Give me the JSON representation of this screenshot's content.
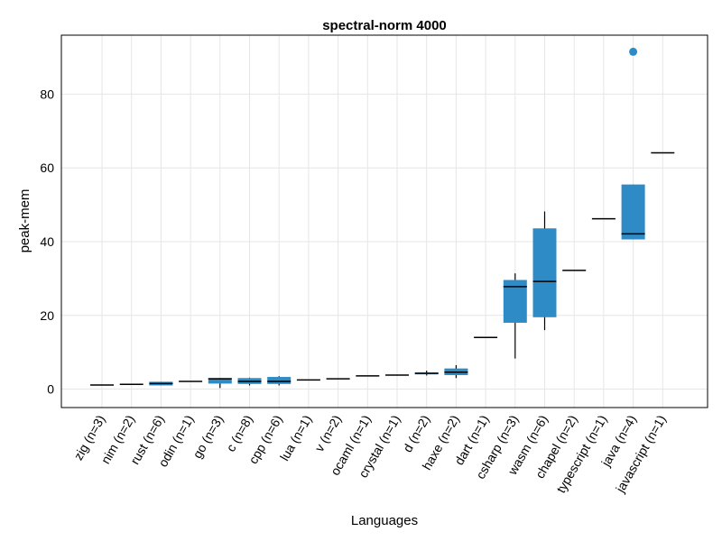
{
  "chart_data": {
    "type": "box",
    "title": "spectral-norm 4000",
    "xlabel": "Languages",
    "ylabel": "peak-mem",
    "ylim": [
      -5,
      96
    ],
    "yticks": [
      0,
      20,
      40,
      60,
      80
    ],
    "grid": true,
    "box_color": "#2e8bc6",
    "median_color": "#000000",
    "categories": [
      "zig (n=3)",
      "nim (n=2)",
      "rust (n=6)",
      "odin (n=1)",
      "go (n=3)",
      "c (n=8)",
      "cpp (n=6)",
      "lua (n=1)",
      "v (n=2)",
      "ocaml (n=1)",
      "crystal (n=1)",
      "d (n=2)",
      "haxe (n=2)",
      "dart (n=1)",
      "csharp (n=3)",
      "wasm (n=6)",
      "chapel (n=2)",
      "typescript (n=1)",
      "java (n=4)",
      "javascript (n=1)"
    ],
    "boxes": [
      {
        "min": 1.1,
        "q1": 1.1,
        "median": 1.1,
        "q3": 1.1,
        "max": 1.1,
        "outliers": []
      },
      {
        "min": 1.3,
        "q1": 1.3,
        "median": 1.3,
        "q3": 1.3,
        "max": 1.3,
        "outliers": []
      },
      {
        "min": 1.0,
        "q1": 1.0,
        "median": 1.5,
        "q3": 2.0,
        "max": 2.0,
        "outliers": []
      },
      {
        "min": 2.1,
        "q1": 2.1,
        "median": 2.1,
        "q3": 2.1,
        "max": 2.1,
        "outliers": []
      },
      {
        "min": 0.3,
        "q1": 1.5,
        "median": 2.8,
        "q3": 3.0,
        "max": 3.0,
        "outliers": []
      },
      {
        "min": 1.0,
        "q1": 1.4,
        "median": 2.1,
        "q3": 3.0,
        "max": 3.1,
        "outliers": []
      },
      {
        "min": 1.0,
        "q1": 1.4,
        "median": 2.1,
        "q3": 3.3,
        "max": 3.5,
        "outliers": []
      },
      {
        "min": 2.5,
        "q1": 2.5,
        "median": 2.5,
        "q3": 2.5,
        "max": 2.5,
        "outliers": []
      },
      {
        "min": 2.8,
        "q1": 2.8,
        "median": 2.8,
        "q3": 2.8,
        "max": 2.8,
        "outliers": []
      },
      {
        "min": 3.6,
        "q1": 3.6,
        "median": 3.6,
        "q3": 3.6,
        "max": 3.6,
        "outliers": []
      },
      {
        "min": 3.8,
        "q1": 3.8,
        "median": 3.8,
        "q3": 3.8,
        "max": 3.8,
        "outliers": []
      },
      {
        "min": 3.7,
        "q1": 4.0,
        "median": 4.3,
        "q3": 4.5,
        "max": 5.0,
        "outliers": []
      },
      {
        "min": 3.0,
        "q1": 3.8,
        "median": 4.6,
        "q3": 5.6,
        "max": 6.5,
        "outliers": []
      },
      {
        "min": 14.0,
        "q1": 14.0,
        "median": 14.0,
        "q3": 14.0,
        "max": 14.0,
        "outliers": []
      },
      {
        "min": 8.3,
        "q1": 18.0,
        "median": 27.8,
        "q3": 29.6,
        "max": 31.4,
        "outliers": []
      },
      {
        "min": 16.0,
        "q1": 19.5,
        "median": 29.2,
        "q3": 43.6,
        "max": 48.2,
        "outliers": []
      },
      {
        "min": 32.2,
        "q1": 32.2,
        "median": 32.2,
        "q3": 32.2,
        "max": 32.2,
        "outliers": []
      },
      {
        "min": 46.2,
        "q1": 46.2,
        "median": 46.2,
        "q3": 46.2,
        "max": 46.2,
        "outliers": []
      },
      {
        "min": 40.6,
        "q1": 40.6,
        "median": 42.1,
        "q3": 55.5,
        "max": 55.5,
        "outliers": [
          91.5
        ]
      },
      {
        "min": 64.1,
        "q1": 64.1,
        "median": 64.1,
        "q3": 64.1,
        "max": 64.1,
        "outliers": []
      }
    ]
  }
}
